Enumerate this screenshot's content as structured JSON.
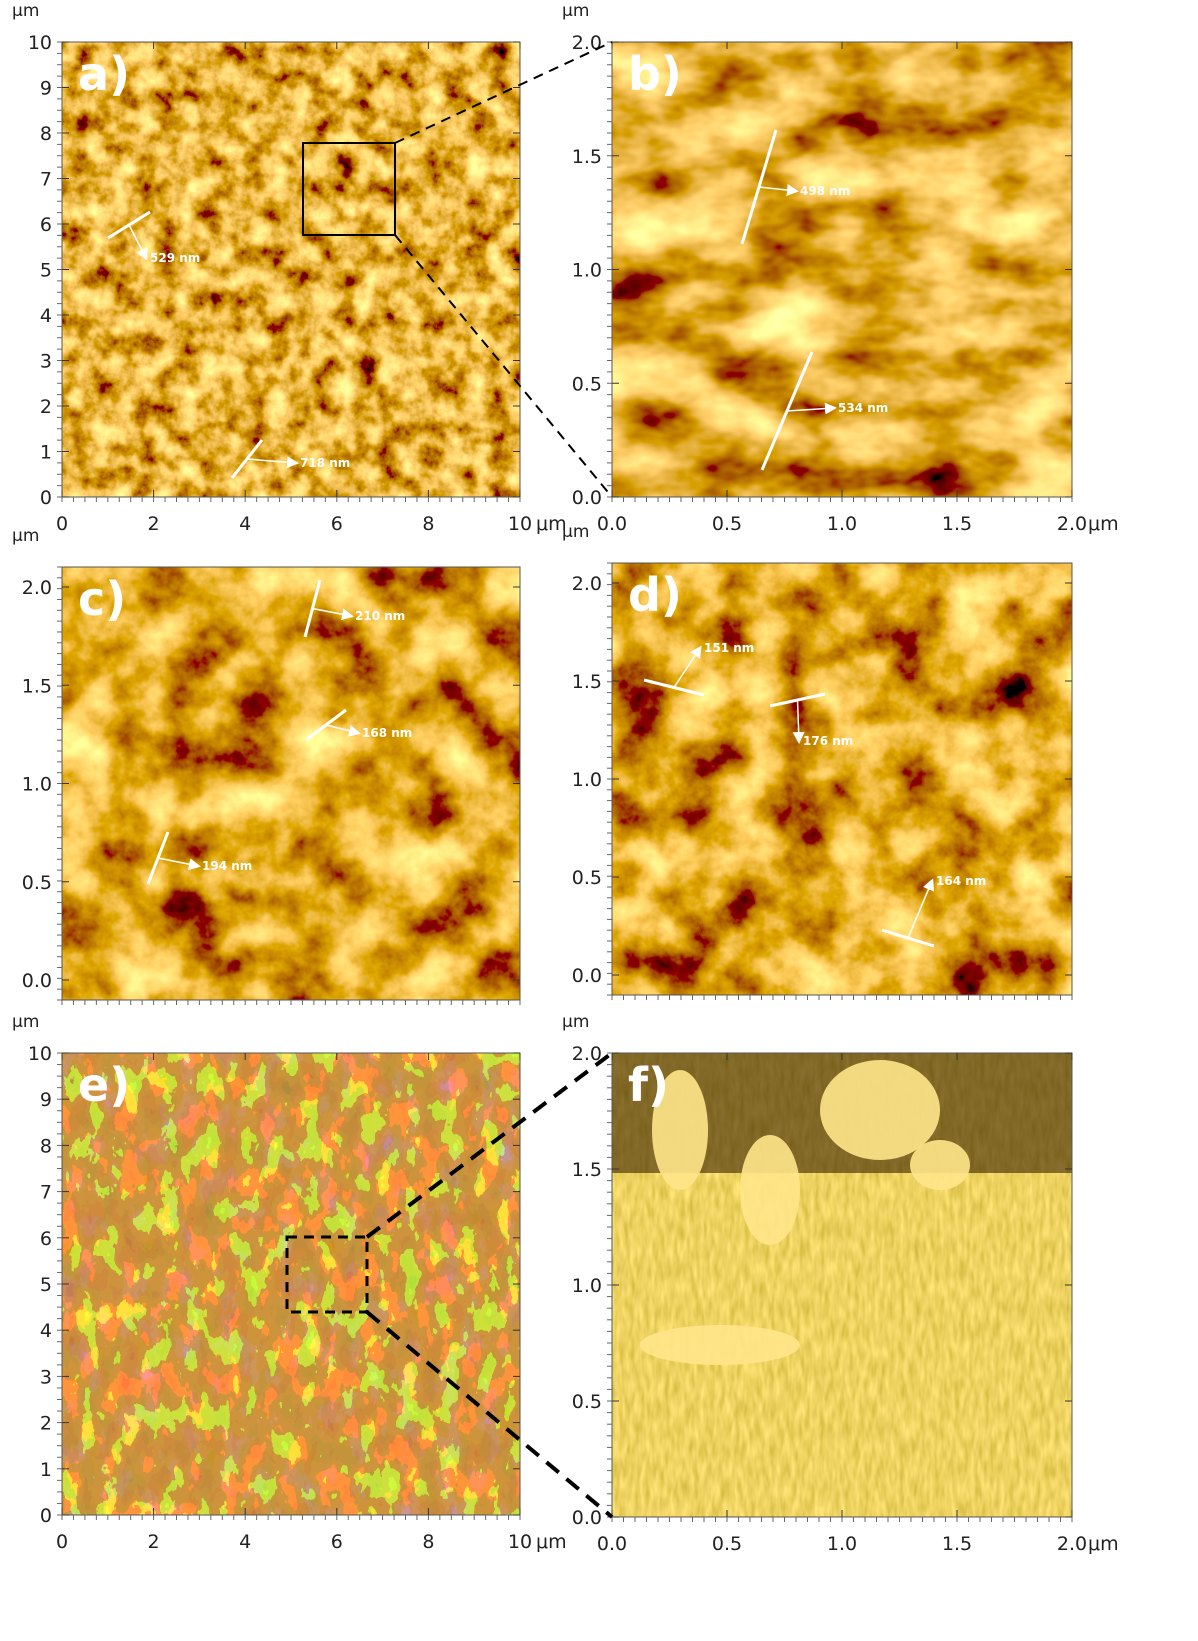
{
  "panels": [
    {
      "label": "a)",
      "x_unit": "μm",
      "y_unit": "μm",
      "x_ticks": [
        "0",
        "2",
        "4",
        "6",
        "8",
        "10"
      ],
      "y_ticks": [
        "0",
        "1",
        "2",
        "3",
        "4",
        "5",
        "6",
        "7",
        "8",
        "9",
        "10"
      ],
      "annotations": [
        "529 nm",
        "718 nm"
      ]
    },
    {
      "label": "b)",
      "x_unit": "μm",
      "y_unit": "μm",
      "x_ticks": [
        "0.0",
        "0.5",
        "1.0",
        "1.5",
        "2.0"
      ],
      "y_ticks": [
        "0.0",
        "0.5",
        "1.0",
        "1.5",
        "2.0"
      ],
      "annotations": [
        "498 nm",
        "534 nm"
      ]
    },
    {
      "label": "c)",
      "y_unit": "μm",
      "y_ticks": [
        "0.0",
        "0.5",
        "1.0",
        "1.5",
        "2.0"
      ],
      "annotations": [
        "210 nm",
        "168 nm",
        "194 nm"
      ]
    },
    {
      "label": "d)",
      "y_unit": "μm",
      "y_ticks": [
        "0.0",
        "0.5",
        "1.0",
        "1.5",
        "2.0"
      ],
      "annotations": [
        "151 nm",
        "176 nm",
        "164 nm"
      ]
    },
    {
      "label": "e)",
      "x_unit": "μm",
      "y_unit": "μm",
      "x_ticks": [
        "0",
        "2",
        "4",
        "6",
        "8",
        "10"
      ],
      "y_ticks": [
        "0",
        "1",
        "2",
        "3",
        "4",
        "5",
        "6",
        "7",
        "8",
        "9",
        "10"
      ],
      "annotations": []
    },
    {
      "label": "f)",
      "x_unit": "μm",
      "y_unit": "μm",
      "x_ticks": [
        "0.0",
        "0.5",
        "1.0",
        "1.5",
        "2.0"
      ],
      "y_ticks": [
        "0.0",
        "0.5",
        "1.0",
        "1.5",
        "2.0"
      ],
      "annotations": []
    }
  ]
}
